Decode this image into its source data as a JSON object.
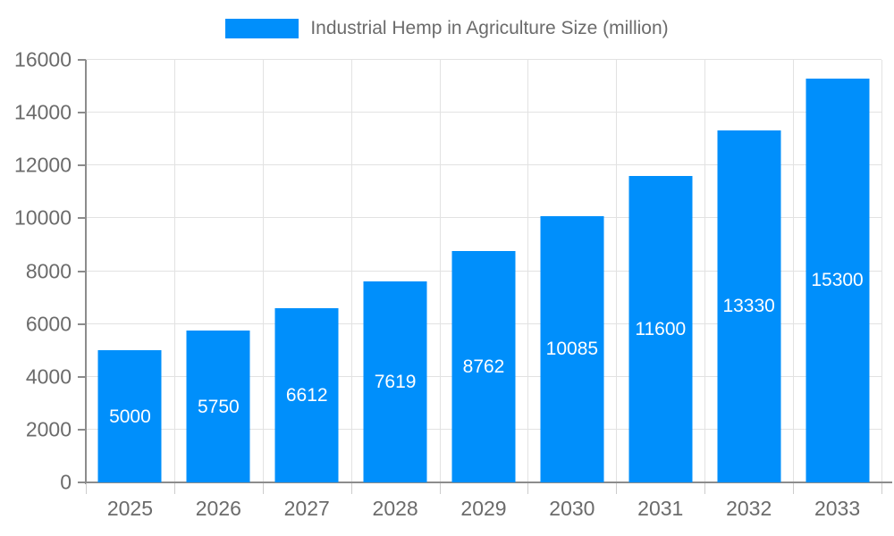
{
  "legend": {
    "label": "Industrial Hemp in Agriculture Size (million)"
  },
  "chart_data": {
    "type": "bar",
    "title": "Industrial Hemp in Agriculture Size (million)",
    "categories": [
      "2025",
      "2026",
      "2027",
      "2028",
      "2029",
      "2030",
      "2031",
      "2032",
      "2033"
    ],
    "values": [
      5000,
      5750,
      6612,
      7619,
      8762,
      10085,
      11600,
      13330,
      15300
    ],
    "xlabel": "",
    "ylabel": "",
    "ylim": [
      0,
      16000
    ],
    "yticks": [
      0,
      2000,
      4000,
      6000,
      8000,
      10000,
      12000,
      14000,
      16000
    ],
    "grid": true,
    "legend_position": "top",
    "value_labels": "inside-center",
    "colors": {
      "bar": "#008FFB",
      "value_label": "#ffffff",
      "axis_text": "#6b6b6b",
      "grid": "#e2e2e2",
      "axis_line": "#8c8c8c",
      "tick": "#cccccc",
      "background": "#ffffff"
    }
  }
}
